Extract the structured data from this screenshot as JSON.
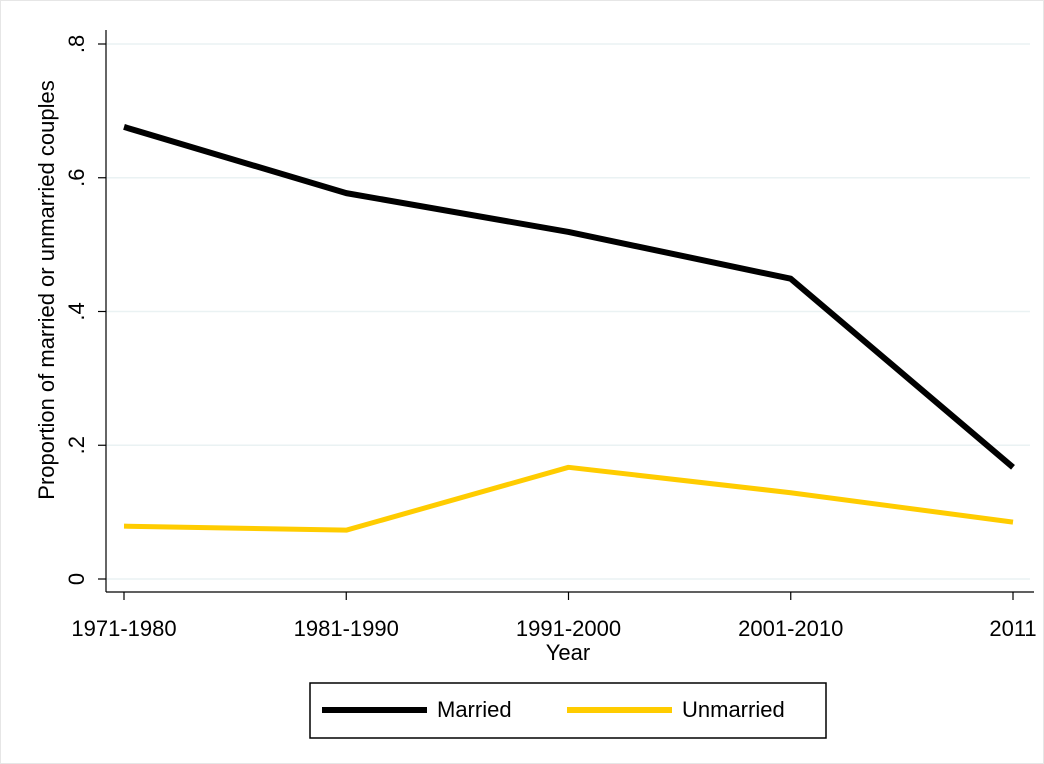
{
  "chart_data": {
    "type": "line",
    "x_label": "Year",
    "y_label": "Proportion of married or unmarried couples",
    "categories": [
      "1971-1980",
      "1981-1990",
      "1991-2000",
      "2001-2010",
      "2011"
    ],
    "series": [
      {
        "name": "Married",
        "color": "#000000",
        "values": [
          0.676,
          0.577,
          0.519,
          0.449,
          0.167
        ]
      },
      {
        "name": "Unmarried",
        "color": "#ffcc00",
        "values": [
          0.079,
          0.073,
          0.167,
          0.129,
          0.085
        ]
      }
    ],
    "ylim": [
      0,
      0.8
    ],
    "yticks": [
      0,
      {
        "value": 0.2,
        "label": ".2"
      },
      {
        "value": 0.4,
        "label": ".4"
      },
      {
        "value": 0.6,
        "label": ".6"
      },
      {
        "value": 0.8,
        "label": ".8"
      }
    ],
    "grid": true
  }
}
